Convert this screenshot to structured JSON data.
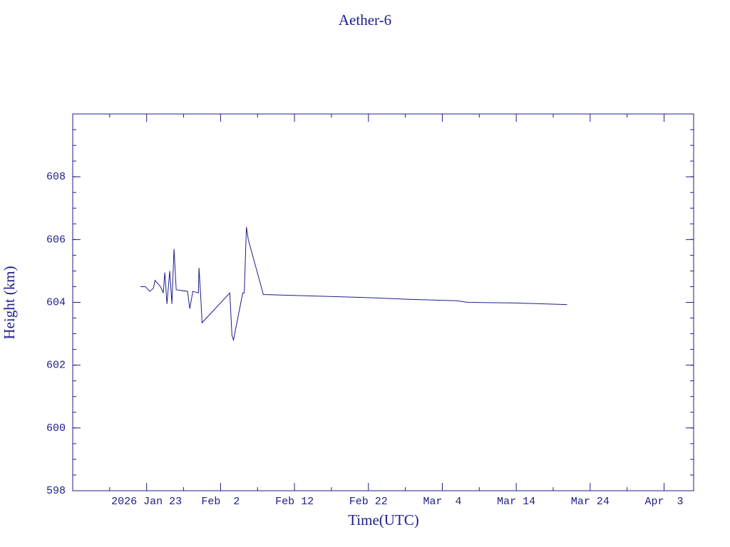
{
  "chart_data": {
    "type": "line",
    "title": "Aether-6",
    "x_label": "Time(UTC)",
    "y_label": "Height (km)",
    "color": "#1c1c8c",
    "x": [
      "2026-01-22T04:00",
      "2026-01-22T20:00",
      "2026-01-23T10:00",
      "2026-01-23T22:00",
      "2026-01-24T03:00",
      "2026-01-24T21:00",
      "2026-01-25T06:00",
      "2026-01-25T11:00",
      "2026-01-25T18:00",
      "2026-01-26T03:00",
      "2026-01-26T10:00",
      "2026-01-26T17:00",
      "2026-01-27T00:00",
      "2026-01-28T13:00",
      "2026-01-28T20:00",
      "2026-01-29T06:00",
      "2026-01-30T00:00",
      "2026-01-30T02:00",
      "2026-01-30T07:00",
      "2026-01-30T12:00",
      "2026-02-03T06:00",
      "2026-02-03T13:00",
      "2026-02-03T18:00",
      "2026-02-05T00:00",
      "2026-02-05T05:00",
      "2026-02-05T12:00",
      "2026-02-05T18:00",
      "2026-02-07T19:00",
      "2026-02-14T16:00",
      "2026-02-21T22:00",
      "2026-02-27T05:00",
      "2026-03-05T23:00",
      "2026-03-07T10:00",
      "2026-03-13T17:00",
      "2026-03-20T21:00"
    ],
    "series": [
      {
        "name": "Height",
        "values": [
          604.5,
          604.5,
          604.35,
          604.45,
          604.7,
          604.5,
          604.3,
          604.95,
          603.95,
          605.0,
          603.95,
          605.7,
          604.4,
          604.35,
          603.8,
          604.35,
          604.3,
          605.1,
          604.3,
          603.35,
          604.3,
          602.95,
          602.8,
          604.3,
          604.3,
          606.4,
          606.0,
          604.25,
          604.2,
          604.15,
          604.1,
          604.05,
          604.0,
          603.98,
          603.93
        ]
      }
    ],
    "xlim": [
      "2026-01-13",
      "2026-04-07"
    ],
    "xticks": [
      {
        "value": "2026-01-23",
        "label": "2026 Jan 23"
      },
      {
        "value": "2026-02-02",
        "label": "Feb  2"
      },
      {
        "value": "2026-02-12",
        "label": "Feb 12"
      },
      {
        "value": "2026-02-22",
        "label": "Feb 22"
      },
      {
        "value": "2026-03-04",
        "label": "Mar  4"
      },
      {
        "value": "2026-03-14",
        "label": "Mar 14"
      },
      {
        "value": "2026-03-24",
        "label": "Mar 24"
      },
      {
        "value": "2026-04-03",
        "label": "Apr  3"
      }
    ],
    "ylim": [
      598,
      610
    ],
    "yticks": [
      598,
      600,
      602,
      604,
      606,
      608
    ],
    "grid": false
  }
}
